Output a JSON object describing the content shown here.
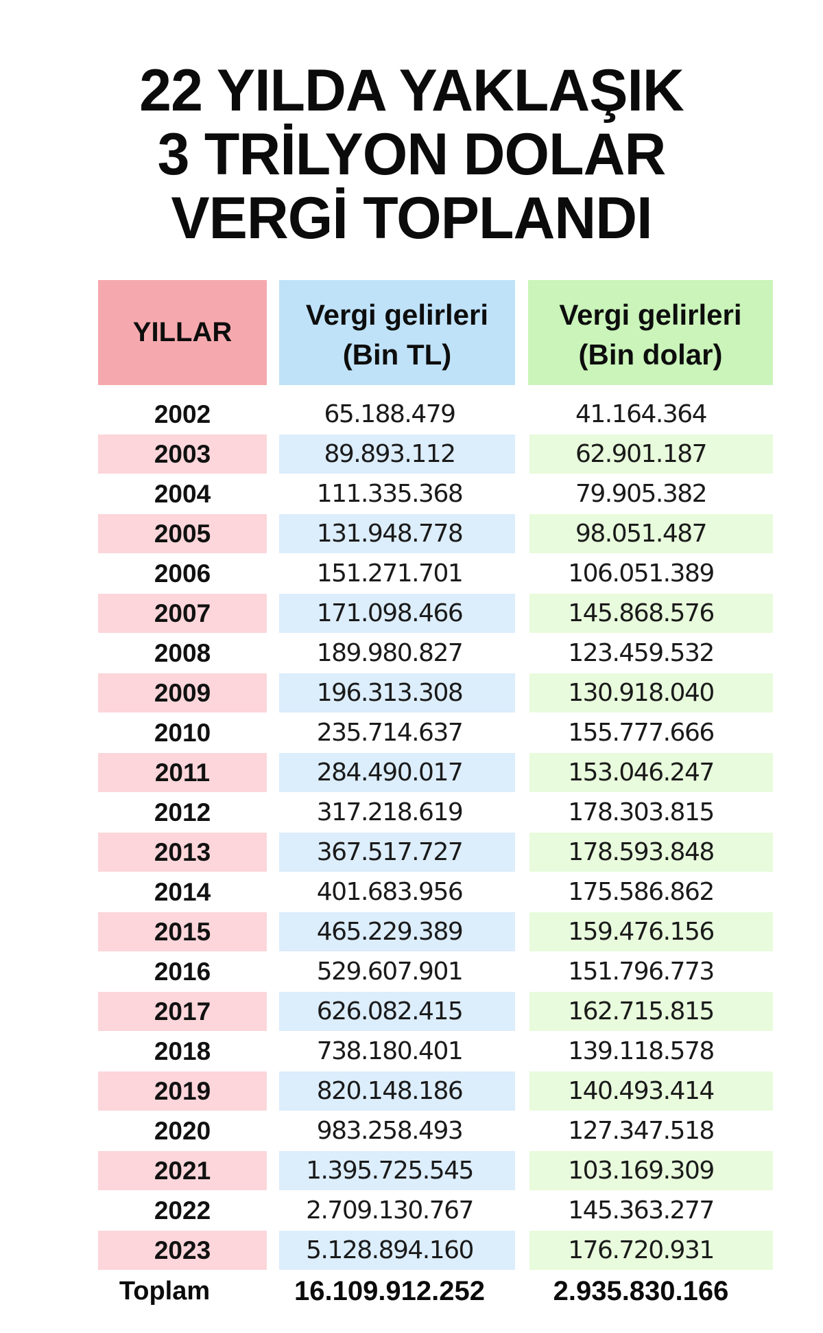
{
  "title": {
    "line1": "22 YILDA YAKLAŞIK",
    "line2": "3 TRİLYON DOLAR",
    "line3": "VERGİ TOPLANDI"
  },
  "table": {
    "headers": {
      "years": "YILLAR",
      "tl_line1": "Vergi gelirleri",
      "tl_line2": "(Bin TL)",
      "usd_line1": "Vergi gelirleri",
      "usd_line2": "(Bin dolar)"
    },
    "rows": [
      {
        "year": "2002",
        "tl": "65.188.479",
        "usd": "41.164.364"
      },
      {
        "year": "2003",
        "tl": "89.893.112",
        "usd": "62.901.187"
      },
      {
        "year": "2004",
        "tl": "111.335.368",
        "usd": "79.905.382"
      },
      {
        "year": "2005",
        "tl": "131.948.778",
        "usd": "98.051.487"
      },
      {
        "year": "2006",
        "tl": "151.271.701",
        "usd": "106.051.389"
      },
      {
        "year": "2007",
        "tl": "171.098.466",
        "usd": "145.868.576"
      },
      {
        "year": "2008",
        "tl": "189.980.827",
        "usd": "123.459.532"
      },
      {
        "year": "2009",
        "tl": "196.313.308",
        "usd": "130.918.040"
      },
      {
        "year": "2010",
        "tl": "235.714.637",
        "usd": "155.777.666"
      },
      {
        "year": "2011",
        "tl": "284.490.017",
        "usd": "153.046.247"
      },
      {
        "year": "2012",
        "tl": "317.218.619",
        "usd": "178.303.815"
      },
      {
        "year": "2013",
        "tl": "367.517.727",
        "usd": "178.593.848"
      },
      {
        "year": "2014",
        "tl": "401.683.956",
        "usd": "175.586.862"
      },
      {
        "year": "2015",
        "tl": "465.229.389",
        "usd": "159.476.156"
      },
      {
        "year": "2016",
        "tl": "529.607.901",
        "usd": "151.796.773"
      },
      {
        "year": "2017",
        "tl": "626.082.415",
        "usd": "162.715.815"
      },
      {
        "year": "2018",
        "tl": "738.180.401",
        "usd": "139.118.578"
      },
      {
        "year": "2019",
        "tl": "820.148.186",
        "usd": "140.493.414"
      },
      {
        "year": "2020",
        "tl": "983.258.493",
        "usd": "127.347.518"
      },
      {
        "year": "2021",
        "tl": "1.395.725.545",
        "usd": "103.169.309"
      },
      {
        "year": "2022",
        "tl": "2.709.130.767",
        "usd": "145.363.277"
      },
      {
        "year": "2023",
        "tl": "5.128.894.160",
        "usd": "176.720.931"
      }
    ],
    "total": {
      "label": "Toplam",
      "tl": "16.109.912.252",
      "usd": "2.935.830.166"
    }
  },
  "colors": {
    "header_years": "#f5a9ae",
    "header_tl": "#bfe2f8",
    "header_usd": "#caf4ba",
    "row_years": "#fcd6da",
    "row_tl": "#dcedfb",
    "row_usd": "#e8fbdc"
  },
  "chart_data": {
    "type": "table",
    "title": "22 YILDA YAKLAŞIK 3 TRİLYON DOLAR VERGİ TOPLANDI",
    "columns": [
      "YILLAR",
      "Vergi gelirleri (Bin TL)",
      "Vergi gelirleri (Bin dolar)"
    ],
    "categories": [
      "2002",
      "2003",
      "2004",
      "2005",
      "2006",
      "2007",
      "2008",
      "2009",
      "2010",
      "2011",
      "2012",
      "2013",
      "2014",
      "2015",
      "2016",
      "2017",
      "2018",
      "2019",
      "2020",
      "2021",
      "2022",
      "2023"
    ],
    "series": [
      {
        "name": "Vergi gelirleri (Bin TL)",
        "values": [
          65188479,
          89893112,
          111335368,
          131948778,
          151271701,
          171098466,
          189980827,
          196313308,
          235714637,
          284490017,
          317218619,
          367517727,
          401683956,
          465229389,
          529607901,
          626082415,
          738180401,
          820148186,
          983258493,
          1395725545,
          2709130767,
          5128894160
        ]
      },
      {
        "name": "Vergi gelirleri (Bin dolar)",
        "values": [
          41164364,
          62901187,
          79905382,
          98051487,
          106051389,
          145868576,
          123459532,
          130918040,
          155777666,
          153046247,
          178303815,
          178593848,
          175586862,
          159476156,
          151796773,
          162715815,
          139118578,
          140493414,
          127347518,
          103169309,
          145363277,
          176720931
        ]
      }
    ],
    "totals": {
      "Vergi gelirleri (Bin TL)": 16109912252,
      "Vergi gelirleri (Bin dolar)": 2935830166
    }
  }
}
